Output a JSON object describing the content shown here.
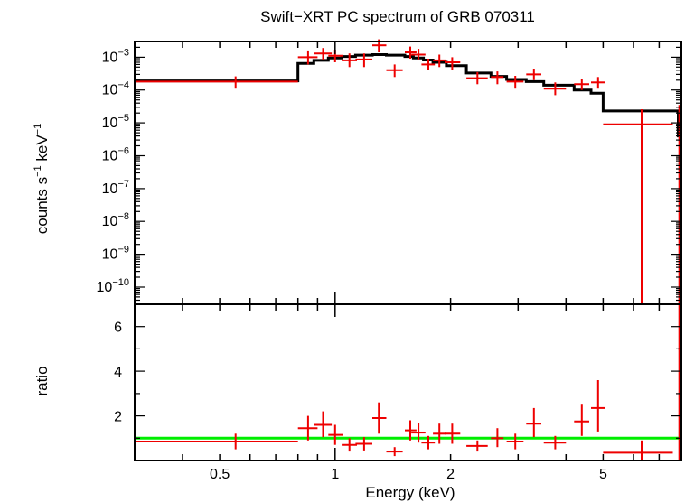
{
  "chart_data": [
    {
      "type": "scatter",
      "panel": "spectrum",
      "title": "Swift−XRT PC spectrum of GRB 070311",
      "xlabel": "",
      "ylabel": {
        "main": "counts s",
        "exp1": "−1",
        "mid": " keV",
        "exp2": "−1"
      },
      "x_scale": "log",
      "y_scale": "log",
      "xlim": [
        0.3,
        8.0
      ],
      "ylim": [
        3e-11,
        0.003
      ],
      "y_ticks": [
        {
          "value": 0.001,
          "base": "10",
          "exp": "−3"
        },
        {
          "value": 0.0001,
          "base": "10",
          "exp": "−4"
        },
        {
          "value": 1e-05,
          "base": "10",
          "exp": "−5"
        },
        {
          "value": 1e-06,
          "base": "10",
          "exp": "−6"
        },
        {
          "value": 1e-07,
          "base": "10",
          "exp": "−7"
        },
        {
          "value": 1e-08,
          "base": "10",
          "exp": "−8"
        },
        {
          "value": 1e-09,
          "base": "10",
          "exp": "−9"
        },
        {
          "value": 1e-10,
          "base": "10",
          "exp": "−10"
        }
      ],
      "data_color": "#ee0000",
      "model_color": "#000000",
      "data_points": [
        {
          "x": 0.55,
          "xlo": 0.3,
          "xhi": 0.8,
          "y": 0.00018,
          "ylo": 0.00011,
          "yhi": 0.00026
        },
        {
          "x": 0.85,
          "xlo": 0.8,
          "xhi": 0.9,
          "y": 0.001,
          "ylo": 0.0006,
          "yhi": 0.0016
        },
        {
          "x": 0.93,
          "xlo": 0.88,
          "xhi": 0.98,
          "y": 0.0013,
          "ylo": 0.0008,
          "yhi": 0.0019
        },
        {
          "x": 1.0,
          "xlo": 0.96,
          "xhi": 1.05,
          "y": 0.0011,
          "ylo": 0.0007,
          "yhi": 0.0017
        },
        {
          "x": 1.09,
          "xlo": 1.04,
          "xhi": 1.14,
          "y": 0.0008,
          "ylo": 0.0005,
          "yhi": 0.0013
        },
        {
          "x": 1.19,
          "xlo": 1.13,
          "xhi": 1.25,
          "y": 0.00085,
          "ylo": 0.0005,
          "yhi": 0.0013
        },
        {
          "x": 1.3,
          "xlo": 1.25,
          "xhi": 1.36,
          "y": 0.0023,
          "ylo": 0.0014,
          "yhi": 0.0035
        },
        {
          "x": 1.43,
          "xlo": 1.36,
          "xhi": 1.5,
          "y": 0.0004,
          "ylo": 0.00025,
          "yhi": 0.0006
        },
        {
          "x": 1.57,
          "xlo": 1.52,
          "xhi": 1.63,
          "y": 0.0014,
          "ylo": 0.0009,
          "yhi": 0.0021
        },
        {
          "x": 1.65,
          "xlo": 1.58,
          "xhi": 1.72,
          "y": 0.0012,
          "ylo": 0.0008,
          "yhi": 0.0018
        },
        {
          "x": 1.75,
          "xlo": 1.68,
          "xhi": 1.82,
          "y": 0.0006,
          "ylo": 0.0004,
          "yhi": 0.0009
        },
        {
          "x": 1.87,
          "xlo": 1.8,
          "xhi": 1.95,
          "y": 0.0008,
          "ylo": 0.0005,
          "yhi": 0.0012
        },
        {
          "x": 2.02,
          "xlo": 1.93,
          "xhi": 2.12,
          "y": 0.0007,
          "ylo": 0.0004,
          "yhi": 0.001
        },
        {
          "x": 2.35,
          "xlo": 2.2,
          "xhi": 2.5,
          "y": 0.00023,
          "ylo": 0.00015,
          "yhi": 0.00035
        },
        {
          "x": 2.65,
          "xlo": 2.55,
          "xhi": 2.75,
          "y": 0.00025,
          "ylo": 0.00015,
          "yhi": 0.00037
        },
        {
          "x": 2.95,
          "xlo": 2.8,
          "xhi": 3.1,
          "y": 0.00018,
          "ylo": 0.00011,
          "yhi": 0.00027
        },
        {
          "x": 3.3,
          "xlo": 3.15,
          "xhi": 3.45,
          "y": 0.0003,
          "ylo": 0.0002,
          "yhi": 0.00045
        },
        {
          "x": 3.75,
          "xlo": 3.5,
          "xhi": 4.0,
          "y": 0.00011,
          "ylo": 7e-05,
          "yhi": 0.00017
        },
        {
          "x": 4.4,
          "xlo": 4.2,
          "xhi": 4.6,
          "y": 0.00015,
          "ylo": 0.0001,
          "yhi": 0.00022
        },
        {
          "x": 4.85,
          "xlo": 4.65,
          "xhi": 5.05,
          "y": 0.00017,
          "ylo": 0.00011,
          "yhi": 0.00025
        },
        {
          "x": 6.3,
          "xlo": 5.0,
          "xhi": 7.6,
          "y": 9e-06,
          "ylo": 3e-11,
          "yhi": 2.6e-05
        },
        {
          "x": 7.9,
          "xlo": 7.85,
          "xhi": 7.95,
          "y": 2e-05,
          "ylo": 3e-11,
          "yhi": 3.5e-05
        }
      ],
      "model_steps": [
        {
          "x0": 0.3,
          "x1": 0.8,
          "y": 0.00019
        },
        {
          "x0": 0.8,
          "x1": 0.88,
          "y": 0.00065
        },
        {
          "x0": 0.88,
          "x1": 0.96,
          "y": 0.0008
        },
        {
          "x0": 0.96,
          "x1": 1.04,
          "y": 0.00095
        },
        {
          "x0": 1.04,
          "x1": 1.13,
          "y": 0.00105
        },
        {
          "x0": 1.13,
          "x1": 1.25,
          "y": 0.00115
        },
        {
          "x0": 1.25,
          "x1": 1.36,
          "y": 0.0012
        },
        {
          "x0": 1.36,
          "x1": 1.52,
          "y": 0.00115
        },
        {
          "x0": 1.52,
          "x1": 1.6,
          "y": 0.00105
        },
        {
          "x0": 1.6,
          "x1": 1.7,
          "y": 0.00095
        },
        {
          "x0": 1.7,
          "x1": 1.8,
          "y": 0.00082
        },
        {
          "x0": 1.8,
          "x1": 1.95,
          "y": 0.0007
        },
        {
          "x0": 1.95,
          "x1": 2.2,
          "y": 0.00055
        },
        {
          "x0": 2.2,
          "x1": 2.55,
          "y": 0.00033
        },
        {
          "x0": 2.55,
          "x1": 2.8,
          "y": 0.00026
        },
        {
          "x0": 2.8,
          "x1": 3.15,
          "y": 0.00021
        },
        {
          "x0": 3.15,
          "x1": 3.5,
          "y": 0.00018
        },
        {
          "x0": 3.5,
          "x1": 4.2,
          "y": 0.00014
        },
        {
          "x0": 4.2,
          "x1": 4.65,
          "y": 0.0001
        },
        {
          "x0": 4.65,
          "x1": 5.0,
          "y": 8e-05
        },
        {
          "x0": 5.0,
          "x1": 7.85,
          "y": 2.3e-05
        },
        {
          "x0": 7.85,
          "x1": 8.0,
          "y": 4e-06
        }
      ]
    },
    {
      "type": "scatter",
      "panel": "ratio",
      "xlabel": "Energy (keV)",
      "ylabel": "ratio",
      "x_scale": "log",
      "xlim": [
        0.3,
        8.0
      ],
      "ylim": [
        0,
        7.0
      ],
      "x_ticks": [
        {
          "value": 0.5,
          "label": "0.5"
        },
        {
          "value": 1,
          "label": "1"
        },
        {
          "value": 2,
          "label": "2"
        },
        {
          "value": 5,
          "label": "5"
        }
      ],
      "y_ticks": [
        {
          "value": 2,
          "label": "2"
        },
        {
          "value": 4,
          "label": "4"
        },
        {
          "value": 6,
          "label": "6"
        }
      ],
      "reference_line": 1.0,
      "reference_color": "#00ee00",
      "data_color": "#ee0000",
      "data_points": [
        {
          "x": 0.55,
          "xlo": 0.3,
          "xhi": 0.8,
          "y": 0.85,
          "ylo": 0.5,
          "yhi": 1.2
        },
        {
          "x": 0.85,
          "xlo": 0.8,
          "xhi": 0.9,
          "y": 1.45,
          "ylo": 0.9,
          "yhi": 2.0
        },
        {
          "x": 0.93,
          "xlo": 0.88,
          "xhi": 0.98,
          "y": 1.6,
          "ylo": 1.05,
          "yhi": 2.2
        },
        {
          "x": 1.0,
          "xlo": 0.96,
          "xhi": 1.05,
          "y": 1.15,
          "ylo": 0.7,
          "yhi": 1.6
        },
        {
          "x": 1.09,
          "xlo": 1.04,
          "xhi": 1.14,
          "y": 0.7,
          "ylo": 0.4,
          "yhi": 1.0
        },
        {
          "x": 1.19,
          "xlo": 1.13,
          "xhi": 1.25,
          "y": 0.75,
          "ylo": 0.45,
          "yhi": 1.05
        },
        {
          "x": 1.3,
          "xlo": 1.25,
          "xhi": 1.36,
          "y": 1.9,
          "ylo": 1.2,
          "yhi": 2.6
        },
        {
          "x": 1.43,
          "xlo": 1.36,
          "xhi": 1.5,
          "y": 0.4,
          "ylo": 0.2,
          "yhi": 0.6
        },
        {
          "x": 1.57,
          "xlo": 1.52,
          "xhi": 1.63,
          "y": 1.35,
          "ylo": 0.9,
          "yhi": 1.8
        },
        {
          "x": 1.65,
          "xlo": 1.58,
          "xhi": 1.72,
          "y": 1.25,
          "ylo": 0.8,
          "yhi": 1.7
        },
        {
          "x": 1.75,
          "xlo": 1.68,
          "xhi": 1.82,
          "y": 0.8,
          "ylo": 0.5,
          "yhi": 1.1
        },
        {
          "x": 1.87,
          "xlo": 1.8,
          "xhi": 1.95,
          "y": 1.2,
          "ylo": 0.75,
          "yhi": 1.65
        },
        {
          "x": 2.02,
          "xlo": 1.93,
          "xhi": 2.12,
          "y": 1.2,
          "ylo": 0.75,
          "yhi": 1.65
        },
        {
          "x": 2.35,
          "xlo": 2.2,
          "xhi": 2.5,
          "y": 0.65,
          "ylo": 0.4,
          "yhi": 0.9
        },
        {
          "x": 2.65,
          "xlo": 2.55,
          "xhi": 2.75,
          "y": 1.0,
          "ylo": 0.6,
          "yhi": 1.45
        },
        {
          "x": 2.95,
          "xlo": 2.8,
          "xhi": 3.1,
          "y": 0.85,
          "ylo": 0.5,
          "yhi": 1.2
        },
        {
          "x": 3.3,
          "xlo": 3.15,
          "xhi": 3.45,
          "y": 1.65,
          "ylo": 1.05,
          "yhi": 2.35
        },
        {
          "x": 3.75,
          "xlo": 3.5,
          "xhi": 4.0,
          "y": 0.8,
          "ylo": 0.5,
          "yhi": 1.1
        },
        {
          "x": 4.4,
          "xlo": 4.2,
          "xhi": 4.6,
          "y": 1.75,
          "ylo": 1.1,
          "yhi": 2.5
        },
        {
          "x": 4.85,
          "xlo": 4.65,
          "xhi": 5.05,
          "y": 2.35,
          "ylo": 1.3,
          "yhi": 3.6
        },
        {
          "x": 6.3,
          "xlo": 5.0,
          "xhi": 7.6,
          "y": 0.35,
          "ylo": 0.0,
          "yhi": 0.9
        },
        {
          "x": 7.9,
          "xlo": 7.85,
          "xhi": 7.95,
          "y": 5.0,
          "ylo": 0.0,
          "yhi": 7.0
        }
      ]
    }
  ]
}
